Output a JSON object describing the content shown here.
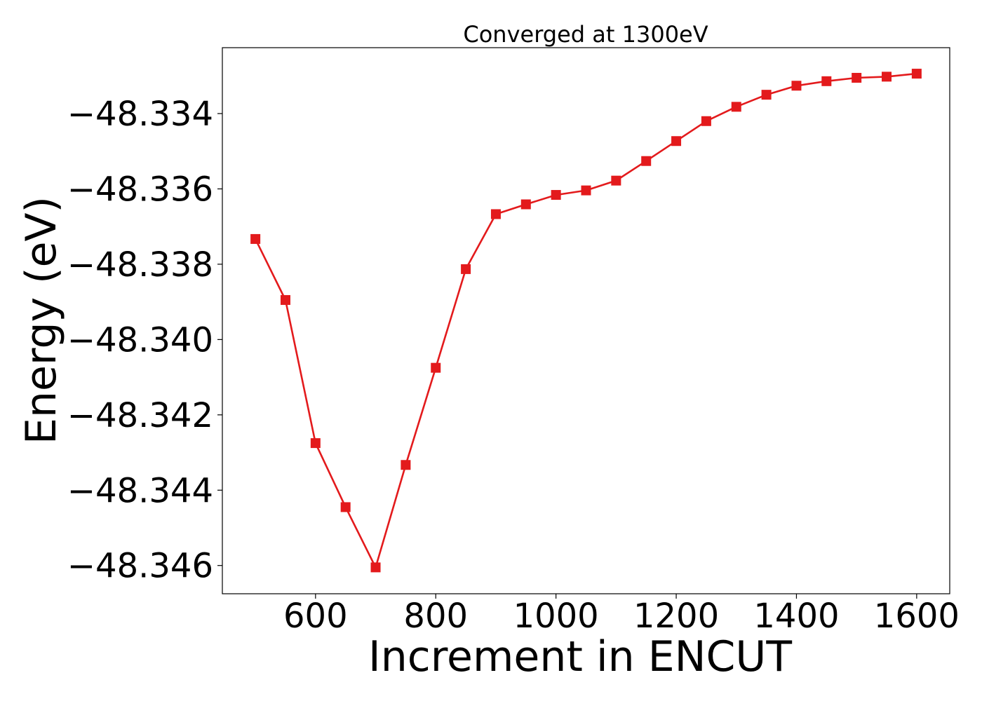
{
  "chart_data": {
    "type": "line",
    "title": "Converged at 1300eV",
    "xlabel": "Increment in ENCUT",
    "ylabel": "Energy (eV)",
    "xlim": [
      445,
      1655
    ],
    "ylim": [
      -48.34675,
      -48.33225
    ],
    "xticks": [
      600,
      800,
      1000,
      1200,
      1400,
      1600
    ],
    "xtick_labels": [
      "600",
      "800",
      "1000",
      "1200",
      "1400",
      "1600"
    ],
    "yticks": [
      -48.334,
      -48.336,
      -48.338,
      -48.34,
      -48.342,
      -48.344,
      -48.346
    ],
    "ytick_labels": [
      "−48.334",
      "−48.336",
      "−48.338",
      "−48.340",
      "−48.342",
      "−48.344",
      "−48.346"
    ],
    "grid": false,
    "series": [
      {
        "color": "#e31a1c",
        "marker": "square",
        "x": [
          500,
          550,
          600,
          650,
          700,
          750,
          800,
          850,
          900,
          950,
          1000,
          1050,
          1100,
          1150,
          1200,
          1250,
          1300,
          1350,
          1400,
          1450,
          1500,
          1550,
          1600
        ],
        "y": [
          -48.33733,
          -48.33895,
          -48.34275,
          -48.34445,
          -48.34605,
          -48.34333,
          -48.34075,
          -48.33813,
          -48.33667,
          -48.33641,
          -48.33616,
          -48.33604,
          -48.33578,
          -48.33526,
          -48.33473,
          -48.3342,
          -48.33382,
          -48.3335,
          -48.33326,
          -48.33314,
          -48.33305,
          -48.33302,
          -48.33294
        ]
      }
    ]
  }
}
